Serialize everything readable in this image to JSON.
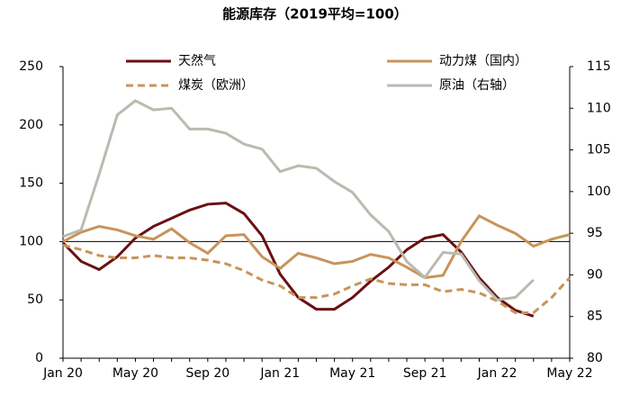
{
  "chart_data": {
    "type": "line",
    "title": "能源库存（2019平均=100）",
    "categories": [
      "Jan 20",
      null,
      null,
      null,
      "May 20",
      null,
      null,
      null,
      "Sep 20",
      null,
      null,
      null,
      "Jan 21",
      null,
      null,
      null,
      "May 21",
      null,
      null,
      null,
      "Sep 21",
      null,
      null,
      null,
      "Jan 22",
      null,
      null,
      null,
      "May 22"
    ],
    "series": [
      {
        "name": "天然气",
        "color": "#6b0f14",
        "style": "solid",
        "values": [
          99,
          83,
          76,
          87,
          103,
          113,
          120,
          127,
          132,
          133,
          124,
          105,
          72,
          52,
          42,
          42,
          52,
          66,
          78,
          93,
          103,
          106,
          91,
          69,
          52,
          41,
          36,
          null,
          null
        ]
      },
      {
        "name": "动力煤（国内）",
        "color": "#c8945a",
        "style": "solid",
        "values": [
          100,
          108,
          113,
          110,
          105,
          102,
          111,
          99,
          90,
          105,
          106,
          87,
          77,
          90,
          86,
          81,
          83,
          89,
          86,
          78,
          69,
          71,
          100,
          122,
          114,
          107,
          96,
          102,
          106
        ]
      },
      {
        "name": "煤炭（欧洲）",
        "color": "#c8945a",
        "style": "dashed",
        "values": [
          97,
          93,
          88,
          86,
          86,
          88,
          86,
          86,
          84,
          81,
          75,
          67,
          62,
          52,
          52,
          55,
          62,
          68,
          64,
          63,
          63,
          57,
          59,
          56,
          49,
          39,
          39,
          52,
          69
        ]
      },
      {
        "name": "原油（右轴）",
        "color": "#b9bbb0",
        "style": "solid",
        "axis": "y2",
        "values": [
          94.6,
          95.4,
          102.1,
          109.2,
          110.9,
          109.8,
          110.0,
          107.5,
          107.5,
          107.0,
          105.7,
          105.1,
          102.4,
          103.1,
          102.8,
          101.2,
          99.9,
          97.2,
          95.2,
          91.6,
          89.7,
          92.7,
          92.5,
          89.3,
          87.0,
          87.3,
          89.4,
          null,
          null
        ]
      }
    ],
    "ylim": [
      0,
      250
    ],
    "yticks": [
      0,
      50,
      100,
      150,
      200,
      250
    ],
    "y2lim": [
      80,
      115
    ],
    "y2ticks": [
      80,
      85,
      90,
      95,
      100,
      105,
      110,
      115
    ],
    "hline": 100
  }
}
